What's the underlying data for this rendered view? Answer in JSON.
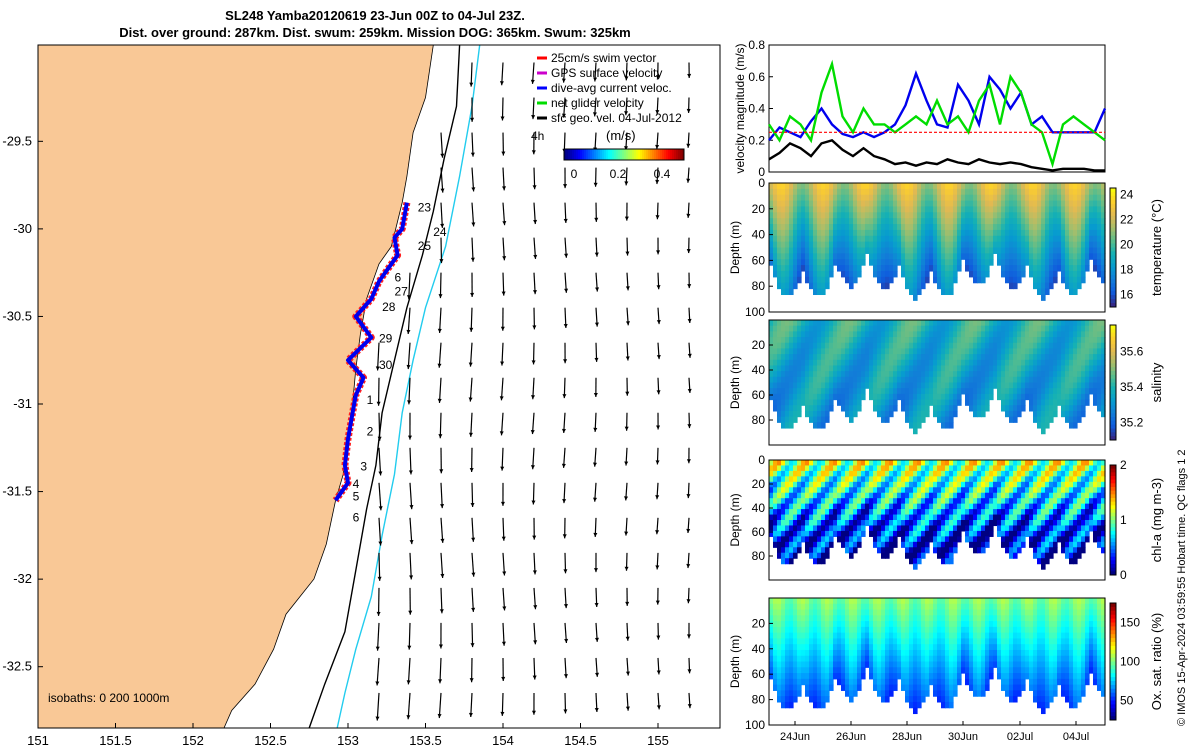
{
  "header": {
    "title_line1": "SL248 Yamba20120619 23-Jun 00Z to 04-Jul 23Z.",
    "title_line2": "Dist. over ground: 287km. Dist. swum: 259km. Mission DOG: 365km. Swum: 325km"
  },
  "map": {
    "xticks": [
      "151",
      "151.5",
      "152",
      "152.5",
      "153",
      "153.5",
      "154",
      "154.5",
      "155"
    ],
    "yticks": [
      "-29.5",
      "-30",
      "-30.5",
      "-31",
      "-31.5",
      "-32",
      "-32.5"
    ],
    "xlim": [
      151,
      155.4
    ],
    "ylim": [
      -32.85,
      -28.95
    ],
    "legend": [
      {
        "label": "25cm/s swim vector",
        "color": "#ff0000"
      },
      {
        "label": "GPS surface velocity",
        "color": "#cc00cc"
      },
      {
        "label": "dive-avg current veloc.",
        "color": "#0000ff"
      },
      {
        "label": "net glider velocity",
        "color": "#00dd00"
      },
      {
        "label": "sfc geo. vel. 04-Jul-2012",
        "color": "#000000"
      }
    ],
    "colorbar_title": "(m/s)",
    "colorbar_ticks": [
      "0",
      "0.2",
      "0.4"
    ],
    "isobaths_label": "isobaths: 0   200  1000m",
    "time_marker": "4h",
    "day_labels": [
      "23",
      "24",
      "25",
      "6",
      "27",
      "28",
      "29",
      "30",
      "1",
      "2",
      "3",
      "4",
      "5",
      "6"
    ],
    "colors": {
      "land": "#f9c896",
      "track": "#ff2020",
      "current": "#0000ee",
      "isobath200": "#000000",
      "isobath1000": "#22ccee"
    }
  },
  "chart_data": [
    {
      "type": "line",
      "ylabel": "velocity magnitude (m/s)",
      "ylim": [
        0,
        0.8
      ],
      "yticks": [
        "0",
        "0.2",
        "0.4",
        "0.6",
        "0.8"
      ],
      "series": [
        {
          "name": "dive-avg current veloc.",
          "color": "#0000ee",
          "values": [
            0.2,
            0.28,
            0.25,
            0.22,
            0.32,
            0.4,
            0.3,
            0.24,
            0.22,
            0.25,
            0.22,
            0.25,
            0.3,
            0.42,
            0.62,
            0.45,
            0.3,
            0.28,
            0.55,
            0.45,
            0.3,
            0.6,
            0.52,
            0.4,
            0.5,
            0.3,
            0.35,
            0.25,
            0.25,
            0.25,
            0.25,
            0.25,
            0.4
          ]
        },
        {
          "name": "net glider velocity",
          "color": "#00dd00",
          "values": [
            0.3,
            0.2,
            0.35,
            0.3,
            0.2,
            0.5,
            0.68,
            0.35,
            0.25,
            0.4,
            0.3,
            0.3,
            0.25,
            0.3,
            0.35,
            0.3,
            0.45,
            0.3,
            0.35,
            0.25,
            0.45,
            0.55,
            0.3,
            0.6,
            0.5,
            0.3,
            0.25,
            0.05,
            0.3,
            0.35,
            0.3,
            0.25,
            0.2
          ]
        },
        {
          "name": "25cm/s swim vector",
          "color": "#ff0000",
          "values": [
            0.25,
            0.25,
            0.25,
            0.25,
            0.25,
            0.25,
            0.25,
            0.25,
            0.25,
            0.25,
            0.25,
            0.25,
            0.25,
            0.25,
            0.25,
            0.25,
            0.25,
            0.25,
            0.25,
            0.25,
            0.25,
            0.25,
            0.25,
            0.25,
            0.25,
            0.25,
            0.25,
            0.25,
            0.25,
            0.25,
            0.25,
            0.25,
            0.25
          ]
        },
        {
          "name": "sfc geo. vel.",
          "color": "#000000",
          "values": [
            0.08,
            0.12,
            0.18,
            0.15,
            0.1,
            0.18,
            0.2,
            0.14,
            0.1,
            0.15,
            0.1,
            0.08,
            0.05,
            0.06,
            0.04,
            0.06,
            0.05,
            0.08,
            0.06,
            0.05,
            0.08,
            0.06,
            0.05,
            0.06,
            0.05,
            0.03,
            0.02,
            0.01,
            0.02,
            0.02,
            0.02,
            0.01,
            0.01
          ]
        }
      ]
    },
    {
      "type": "heatmap",
      "ylabel": "Depth (m)",
      "cbar_label": "temperature (°C)",
      "cbar_ticks": [
        "16",
        "18",
        "20",
        "22",
        "24"
      ],
      "clim": [
        15,
        24.5
      ],
      "depth_ticks": [
        "0",
        "20",
        "40",
        "60",
        "80",
        "100"
      ]
    },
    {
      "type": "heatmap",
      "ylabel": "Depth (m)",
      "cbar_label": "salinity",
      "cbar_ticks": [
        "35.2",
        "35.4",
        "35.6"
      ],
      "clim": [
        35.1,
        35.75
      ],
      "depth_ticks": [
        "20",
        "40",
        "60",
        "80"
      ]
    },
    {
      "type": "heatmap",
      "ylabel": "Depth (m)",
      "cbar_label": "chl-a (mg m-3)",
      "cbar_ticks": [
        "0",
        "1",
        "2"
      ],
      "clim": [
        0,
        2
      ],
      "depth_ticks": [
        "0",
        "20",
        "40",
        "60",
        "80"
      ]
    },
    {
      "type": "heatmap",
      "ylabel": "Depth (m)",
      "cbar_label": "Ox. sat. ratio (%)",
      "cbar_ticks": [
        "50",
        "100",
        "150"
      ],
      "clim": [
        25,
        175
      ],
      "depth_ticks": [
        "20",
        "40",
        "60",
        "80",
        "100"
      ]
    }
  ],
  "time_axis": {
    "ticks": [
      "24Jun",
      "26Jun",
      "28Jun",
      "30Jun",
      "02Jul",
      "04Jul"
    ]
  },
  "footer": {
    "credit": "© IMOS 15-Apr-2024 03:59:55 Hobart time. QC flags 1  2"
  }
}
